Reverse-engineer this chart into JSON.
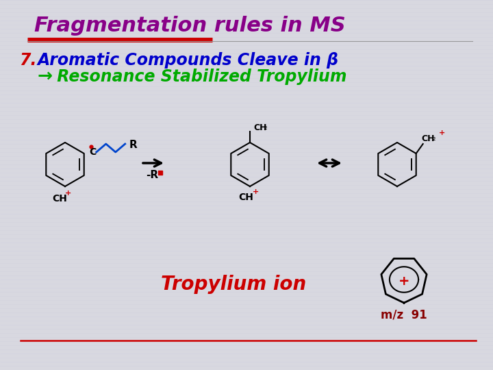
{
  "bg_color": "#d8d8e0",
  "title": "Fragmentation rules in MS",
  "title_color": "#880088",
  "title_fontsize": 22,
  "red_bar_color": "#cc0000",
  "line1_number": "7.",
  "line1_number_color": "#cc0000",
  "line1_text": "Aromatic Compounds Cleave in β",
  "line1_color": "#0000cc",
  "line2_arrow": "→",
  "line2_text": " Resonance Stabilized Tropylium",
  "line2_color": "#00aa00",
  "tropylium_text": "Tropylium ion",
  "tropylium_color": "#cc0000",
  "tropylium_fontsize": 20,
  "mz_text": "m/z  91",
  "mz_color": "#880000",
  "mz_fontsize": 12,
  "dot_color": "#cc0000",
  "struct_color": "#000000",
  "chain_color": "#0044cc"
}
